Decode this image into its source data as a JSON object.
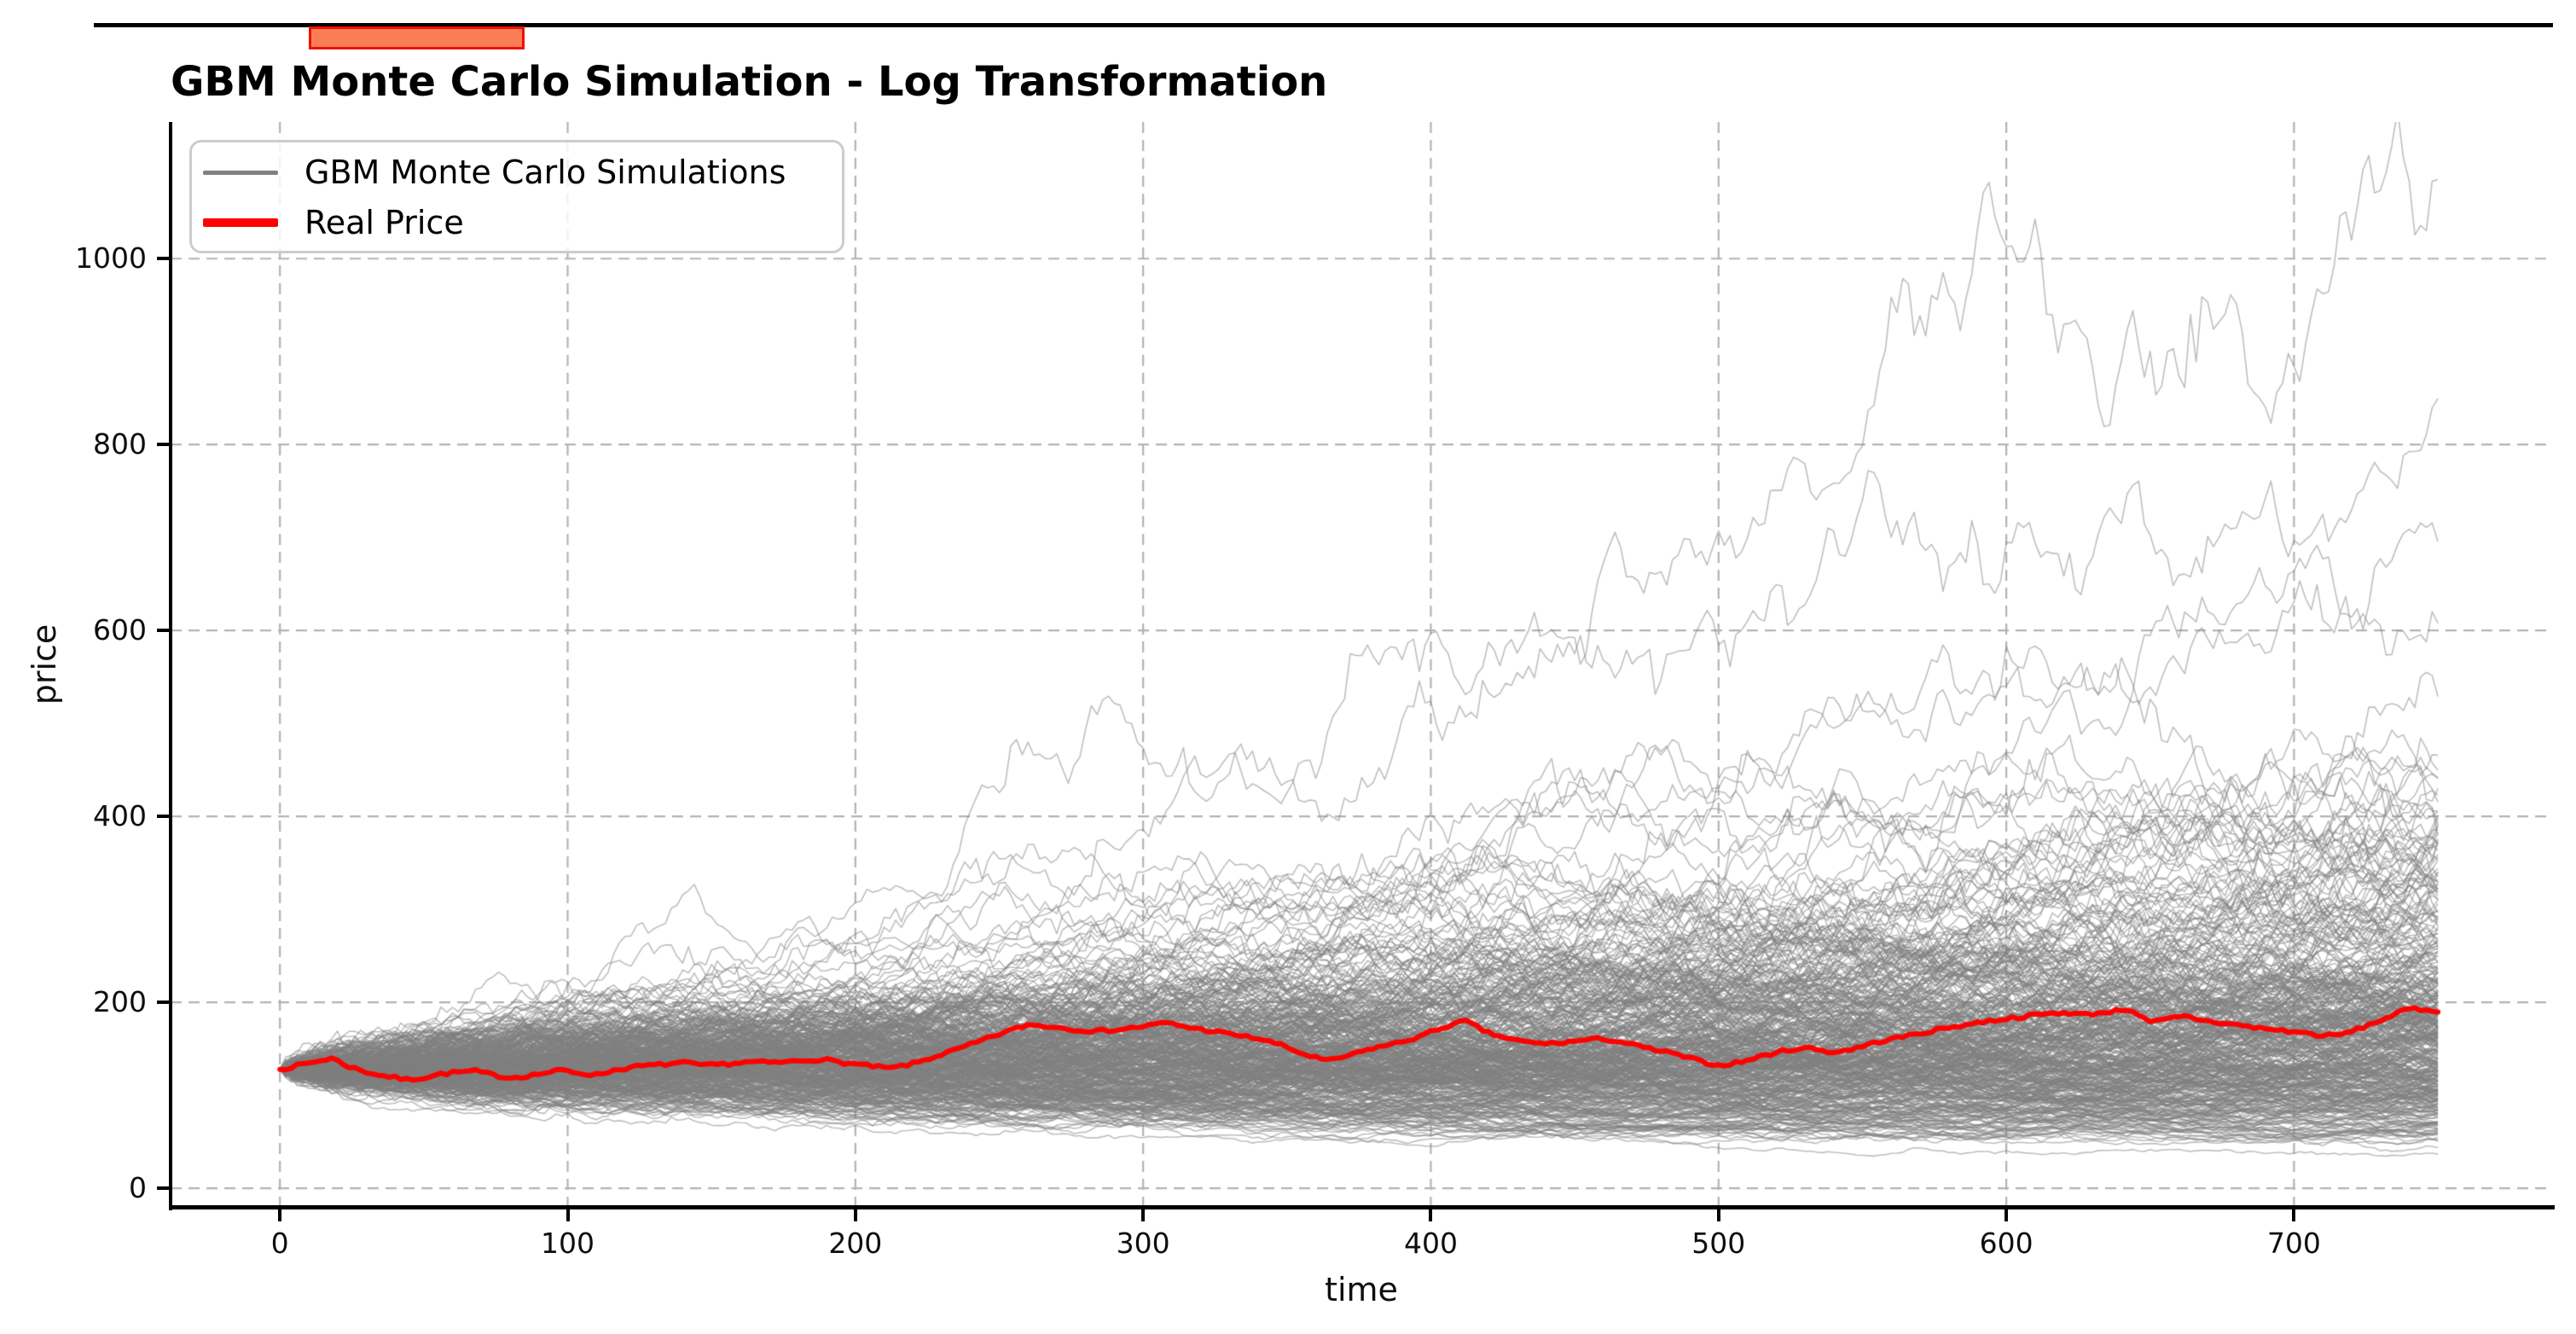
{
  "figure": {
    "title": "GBM Monte Carlo Simulation - Log Transformation"
  },
  "top_fragment": {
    "description": "bottom edge of a cropped element above the chart",
    "line_color": "#000000",
    "bar_fill": "#fa7d57",
    "bar_border": "#ee1100"
  },
  "legend": {
    "items": [
      {
        "label": "GBM Monte Carlo Simulations",
        "color": "#808080"
      },
      {
        "label": "Real Price",
        "color": "#ff0000"
      }
    ]
  },
  "axes": {
    "x_label": "time",
    "y_label": "price",
    "x_ticks": [
      0,
      100,
      200,
      300,
      400,
      500,
      600,
      700
    ],
    "y_ticks": [
      0,
      200,
      400,
      600,
      800,
      1000
    ]
  },
  "chart_data": {
    "type": "line",
    "title": "GBM Monte Carlo Simulation - Log Transformation",
    "xlabel": "time",
    "ylabel": "price",
    "xlim": [
      -38,
      790
    ],
    "ylim": [
      -20,
      1147
    ],
    "x_ticks": [
      0,
      100,
      200,
      300,
      400,
      500,
      600,
      700
    ],
    "y_ticks": [
      0,
      200,
      400,
      600,
      800,
      1000
    ],
    "grid": {
      "on": true,
      "style": "dashed",
      "color": "#b3b3b3"
    },
    "legend_position": "upper left",
    "series": [
      {
        "name": "Real Price",
        "color": "#ff0000",
        "line_width": 6,
        "points": [
          [
            0,
            128
          ],
          [
            6,
            132
          ],
          [
            12,
            136
          ],
          [
            18,
            140
          ],
          [
            24,
            131
          ],
          [
            30,
            125
          ],
          [
            36,
            121
          ],
          [
            44,
            117
          ],
          [
            50,
            119
          ],
          [
            56,
            123
          ],
          [
            62,
            125
          ],
          [
            68,
            126
          ],
          [
            74,
            122
          ],
          [
            80,
            119
          ],
          [
            86,
            121
          ],
          [
            92,
            124
          ],
          [
            98,
            127
          ],
          [
            104,
            124
          ],
          [
            110,
            122
          ],
          [
            116,
            127
          ],
          [
            124,
            131
          ],
          [
            132,
            133
          ],
          [
            140,
            135
          ],
          [
            148,
            132
          ],
          [
            156,
            134
          ],
          [
            164,
            136
          ],
          [
            172,
            135
          ],
          [
            180,
            137
          ],
          [
            188,
            139
          ],
          [
            196,
            135
          ],
          [
            204,
            132
          ],
          [
            212,
            129
          ],
          [
            220,
            134
          ],
          [
            228,
            142
          ],
          [
            236,
            150
          ],
          [
            244,
            159
          ],
          [
            252,
            168
          ],
          [
            260,
            176
          ],
          [
            268,
            174
          ],
          [
            276,
            171
          ],
          [
            284,
            169
          ],
          [
            292,
            171
          ],
          [
            300,
            174
          ],
          [
            308,
            178
          ],
          [
            316,
            173
          ],
          [
            324,
            169
          ],
          [
            332,
            165
          ],
          [
            340,
            161
          ],
          [
            348,
            154
          ],
          [
            356,
            144
          ],
          [
            364,
            137
          ],
          [
            372,
            143
          ],
          [
            380,
            151
          ],
          [
            388,
            156
          ],
          [
            396,
            163
          ],
          [
            404,
            173
          ],
          [
            412,
            180
          ],
          [
            420,
            167
          ],
          [
            428,
            160
          ],
          [
            436,
            156
          ],
          [
            444,
            156
          ],
          [
            452,
            159
          ],
          [
            460,
            161
          ],
          [
            468,
            156
          ],
          [
            476,
            150
          ],
          [
            484,
            145
          ],
          [
            492,
            138
          ],
          [
            500,
            132
          ],
          [
            508,
            136
          ],
          [
            516,
            143
          ],
          [
            524,
            149
          ],
          [
            532,
            151
          ],
          [
            540,
            146
          ],
          [
            548,
            151
          ],
          [
            556,
            158
          ],
          [
            564,
            163
          ],
          [
            572,
            168
          ],
          [
            580,
            173
          ],
          [
            588,
            177
          ],
          [
            596,
            181
          ],
          [
            604,
            184
          ],
          [
            612,
            187
          ],
          [
            620,
            189
          ],
          [
            628,
            187
          ],
          [
            636,
            190
          ],
          [
            643,
            193
          ],
          [
            650,
            178
          ],
          [
            656,
            182
          ],
          [
            662,
            185
          ],
          [
            668,
            181
          ],
          [
            674,
            178
          ],
          [
            680,
            176
          ],
          [
            686,
            173
          ],
          [
            692,
            171
          ],
          [
            698,
            169
          ],
          [
            704,
            167
          ],
          [
            710,
            164
          ],
          [
            716,
            165
          ],
          [
            722,
            171
          ],
          [
            728,
            178
          ],
          [
            734,
            186
          ],
          [
            740,
            193
          ],
          [
            746,
            192
          ],
          [
            751,
            191
          ]
        ]
      }
    ],
    "simulations": {
      "name": "GBM Monte Carlo Simulations",
      "count": 420,
      "start_value": 128,
      "t_max": 750,
      "drift_per_step": 0.00048,
      "volatility_per_step": 0.019,
      "max_end_value": 1085,
      "mid_excursion_peak": 772,
      "mid_excursion_window": [
        500,
        620
      ],
      "color": "#808080",
      "opacity": 0.5
    }
  }
}
